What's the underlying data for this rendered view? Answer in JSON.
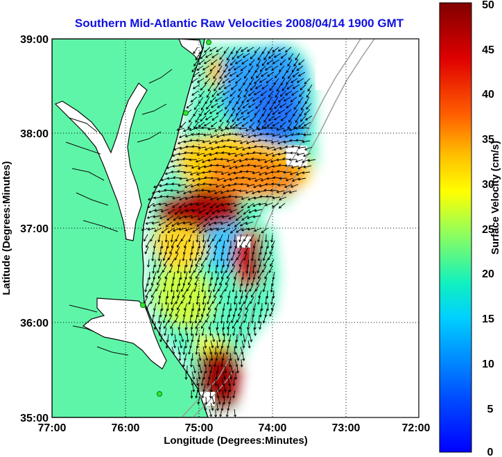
{
  "title": "Southern Mid-Atlantic Raw Velocities 2008/04/14 1900 GMT",
  "x_axis": {
    "label": "Longitude (Degrees:Minutes)",
    "ticks": [
      "77:00",
      "76:00",
      "75:00",
      "74:00",
      "73:00",
      "72:00"
    ],
    "range": [
      -77,
      -72
    ]
  },
  "y_axis": {
    "label": "Latitude (Degrees:Minutes)",
    "ticks": [
      "39:00",
      "38:00",
      "37:00",
      "36:00",
      "35:00"
    ],
    "range": [
      35,
      39
    ]
  },
  "colorbar": {
    "label": "Surface Velocity (cm/s)",
    "ticks": [
      "50",
      "45",
      "40",
      "35",
      "30",
      "25",
      "20",
      "15",
      "10",
      "5",
      "0"
    ],
    "range": [
      0,
      50
    ],
    "colormap": "jet"
  },
  "colors": {
    "land": "#5ff5a8",
    "water": "#ffffff",
    "title": "#1010e0",
    "arrows": "#000000",
    "station": "#2ee82e"
  },
  "grid": "dotted"
}
